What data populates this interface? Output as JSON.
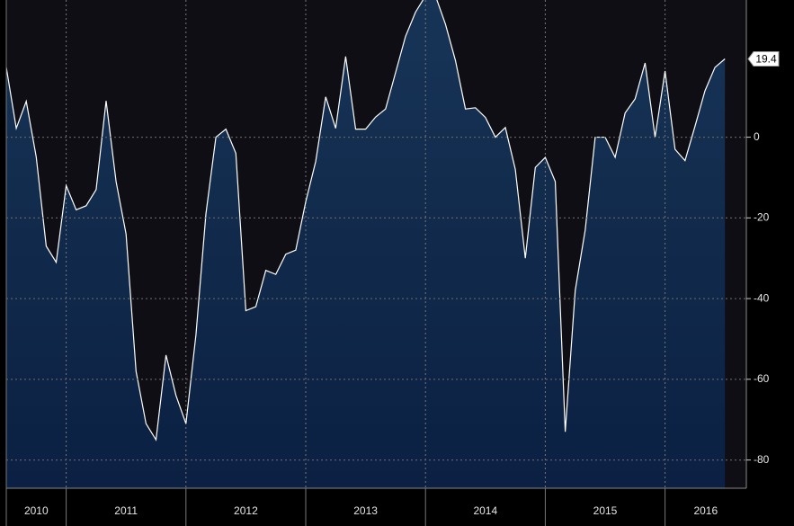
{
  "chart_data": {
    "type": "area",
    "categories": [
      null,
      null,
      null,
      null,
      null,
      null,
      null,
      null,
      null,
      null,
      null,
      null,
      null,
      null,
      null,
      null,
      null,
      null,
      null,
      null,
      null,
      null,
      null,
      null,
      null,
      null,
      null,
      null,
      null,
      null,
      null,
      null,
      null,
      null,
      null,
      null,
      null,
      null,
      null,
      null,
      null,
      null,
      null,
      null,
      null,
      null,
      null,
      null,
      null,
      null,
      null,
      null,
      null,
      null,
      null,
      null,
      null,
      null,
      null,
      null,
      null,
      null,
      null,
      null,
      null,
      null,
      null,
      null,
      null,
      null,
      null,
      null,
      null
    ],
    "values": [
      17.3,
      2.2,
      8.9,
      -4.9,
      -27,
      -31,
      -12,
      -18,
      -17,
      -13,
      9,
      -11,
      -24,
      -58,
      -71,
      -75,
      -54,
      -64,
      -71,
      -49,
      -19,
      0,
      2,
      -4,
      -43,
      -42,
      -33,
      -34,
      -29,
      -28,
      -16,
      -6,
      10,
      2.2,
      20,
      2,
      2,
      5,
      7,
      16,
      25,
      31,
      35,
      35,
      28,
      19,
      7,
      7.3,
      4.9,
      0,
      2.4,
      -8,
      -30,
      -7.5,
      -5,
      -11,
      -73,
      -38,
      -23,
      0,
      0,
      -5,
      6,
      9.5,
      18.4,
      0,
      16.4,
      -3,
      -5.8,
      2.7,
      11.5,
      17.3,
      19.4
    ],
    "year_labels": [
      "2010",
      "2011",
      "2012",
      "2013",
      "2014",
      "2015",
      "2016"
    ],
    "ylim": [
      -87,
      34
    ],
    "yticks": [
      0,
      -20,
      -40,
      -60,
      -80
    ],
    "grid": true,
    "line_color": "#ffffff",
    "fill_top": "#173456",
    "fill_bottom": "#0b2042"
  }
}
